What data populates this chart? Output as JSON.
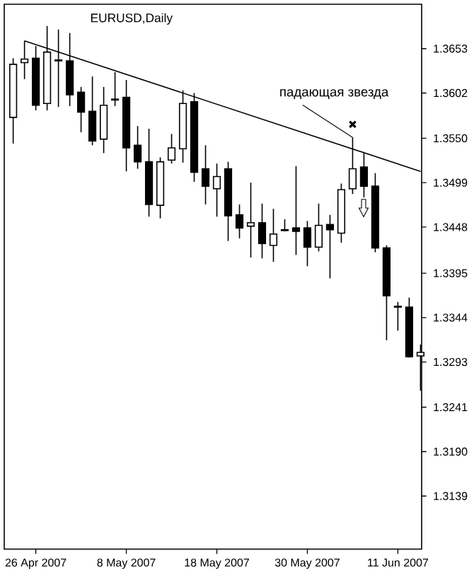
{
  "chart_data": {
    "type": "candlestick",
    "title": "EURUSD,Daily",
    "categories": [
      null,
      null,
      "26 Apr 2007",
      null,
      null,
      null,
      null,
      null,
      null,
      null,
      "8 May 2007",
      null,
      null,
      null,
      null,
      null,
      null,
      null,
      "18 May 2007",
      null,
      null,
      null,
      null,
      null,
      null,
      null,
      "30 May 2007",
      null,
      null,
      null,
      null,
      null,
      null,
      null,
      "11 Jun 2007",
      null,
      null
    ],
    "ohlc": [
      [
        1.3574,
        1.3642,
        1.3544,
        1.3635
      ],
      [
        1.3637,
        1.3662,
        1.3618,
        1.3641
      ],
      [
        1.3642,
        1.3656,
        1.3582,
        1.3588
      ],
      [
        1.359,
        1.3679,
        1.3582,
        1.3649
      ],
      [
        1.364,
        1.3675,
        1.3586,
        1.3639
      ],
      [
        1.3639,
        1.3671,
        1.3587,
        1.36
      ],
      [
        1.3603,
        1.3609,
        1.3557,
        1.358
      ],
      [
        1.3581,
        1.3621,
        1.3542,
        1.3547
      ],
      [
        1.3549,
        1.3609,
        1.3533,
        1.3588
      ],
      [
        1.3595,
        1.3626,
        1.3587,
        1.3594
      ],
      [
        1.3597,
        1.3617,
        1.3512,
        1.3539
      ],
      [
        1.3542,
        1.3564,
        1.3515,
        1.3523
      ],
      [
        1.3523,
        1.3561,
        1.346,
        1.3474
      ],
      [
        1.3473,
        1.3528,
        1.3458,
        1.3523
      ],
      [
        1.3525,
        1.3555,
        1.3521,
        1.3539
      ],
      [
        1.3538,
        1.3605,
        1.3522,
        1.359
      ],
      [
        1.3592,
        1.3602,
        1.35,
        1.3511
      ],
      [
        1.3515,
        1.3542,
        1.3474,
        1.3495
      ],
      [
        1.3492,
        1.3521,
        1.346,
        1.3506
      ],
      [
        1.3515,
        1.3523,
        1.3432,
        1.3461
      ],
      [
        1.3462,
        1.3474,
        1.3435,
        1.3447
      ],
      [
        1.3449,
        1.3499,
        1.3413,
        1.3453
      ],
      [
        1.3453,
        1.3475,
        1.3412,
        1.3429
      ],
      [
        1.3427,
        1.3469,
        1.3408,
        1.344
      ],
      [
        1.3445,
        1.3457,
        1.3443,
        1.3444
      ],
      [
        1.3447,
        1.3518,
        1.3416,
        1.3443
      ],
      [
        1.3447,
        1.3455,
        1.3403,
        1.3425
      ],
      [
        1.3425,
        1.3475,
        1.342,
        1.345
      ],
      [
        1.3451,
        1.3462,
        1.3389,
        1.3445
      ],
      [
        1.3441,
        1.3498,
        1.343,
        1.3491
      ],
      [
        1.3492,
        1.3551,
        1.3486,
        1.3515
      ],
      [
        1.3517,
        1.3533,
        1.3482,
        1.3495
      ],
      [
        1.3495,
        1.351,
        1.3419,
        1.3424
      ],
      [
        1.3424,
        1.3427,
        1.3318,
        1.3369
      ],
      [
        1.3357,
        1.3362,
        1.3329,
        1.3356
      ],
      [
        1.3356,
        1.3367,
        1.3298,
        1.3299
      ],
      [
        1.33,
        1.3313,
        1.326,
        1.3304
      ]
    ],
    "series": [
      {
        "type": "line",
        "values": [
          null,
          1.3662,
          null,
          null,
          null,
          null,
          null,
          null,
          null,
          null,
          null,
          null,
          null,
          null,
          null,
          null,
          null,
          null,
          null,
          null,
          null,
          null,
          null,
          null,
          null,
          null,
          null,
          null,
          null,
          null,
          null,
          null,
          null,
          null,
          null,
          null,
          1.3512
        ],
        "color": "#000000"
      },
      {
        "type": "scatter",
        "marker": "cross",
        "values": [
          null,
          null,
          null,
          null,
          null,
          null,
          null,
          null,
          null,
          null,
          null,
          null,
          null,
          null,
          null,
          null,
          null,
          null,
          null,
          null,
          null,
          null,
          null,
          null,
          null,
          null,
          null,
          null,
          null,
          null,
          1.3566,
          null,
          null,
          null,
          null,
          null,
          null
        ],
        "color": "#000000"
      }
    ],
    "ylim": [
      1.3078,
      1.3704
    ],
    "yticks": [
      1.3139,
      {
        "value": 1.319,
        "label": "1.3190"
      },
      1.3241,
      1.3293,
      1.3344,
      1.3395,
      1.3448,
      1.3499,
      {
        "value": 1.355,
        "label": "1.3550"
      },
      1.3602,
      1.3653
    ],
    "annotations": [
      {
        "text": "падающая звезда",
        "y": 1.3551
      }
    ],
    "grid": false
  }
}
